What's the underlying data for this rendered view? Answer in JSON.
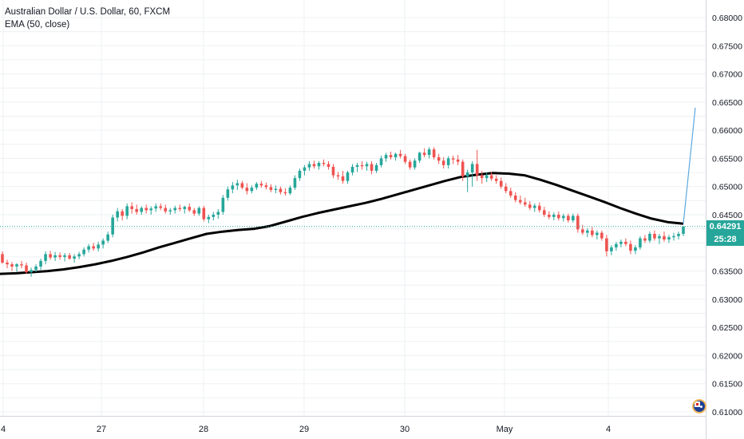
{
  "legend": {
    "symbol": "Australian Dollar / U.S. Dollar, 60, FXCM",
    "indicator": "EMA (50, close)"
  },
  "price_axis": {
    "ticks": [
      "0.68000",
      "0.67500",
      "0.67000",
      "0.66500",
      "0.66000",
      "0.65500",
      "0.65000",
      "0.64500",
      "0.63500",
      "0.63000",
      "0.62500",
      "0.62000",
      "0.61500",
      "0.61000"
    ],
    "current_price": "0.64291",
    "countdown": "25:28"
  },
  "time_axis": {
    "labels": [
      "4",
      "27",
      "28",
      "29",
      "30",
      "May",
      "4"
    ]
  },
  "colors": {
    "up": "#26a69a",
    "down": "#ef5350",
    "ema": "#000000",
    "projection": "#5ba9e0",
    "grid": "#eef0f3",
    "price_line": "#26a69a"
  },
  "icons": {
    "flag": "australia-flag-icon"
  },
  "chart_data": {
    "type": "candlestick",
    "title": "Australian Dollar / U.S. Dollar, 60, FXCM",
    "ylim": [
      0.6095,
      0.6828
    ],
    "grid": true,
    "candles": [
      [
        0.638,
        0.6385,
        0.6363,
        0.6365
      ],
      [
        0.6365,
        0.637,
        0.6355,
        0.6362
      ],
      [
        0.6362,
        0.6366,
        0.635,
        0.6358
      ],
      [
        0.6358,
        0.6364,
        0.6349,
        0.6362
      ],
      [
        0.6362,
        0.6368,
        0.6355,
        0.636
      ],
      [
        0.636,
        0.6365,
        0.6345,
        0.6348
      ],
      [
        0.6348,
        0.6356,
        0.634,
        0.6352
      ],
      [
        0.6352,
        0.6362,
        0.6348,
        0.6358
      ],
      [
        0.6358,
        0.6372,
        0.6352,
        0.6368
      ],
      [
        0.6368,
        0.6385,
        0.6362,
        0.638
      ],
      [
        0.638,
        0.6386,
        0.637,
        0.6374
      ],
      [
        0.6374,
        0.6384,
        0.6368,
        0.6378
      ],
      [
        0.6378,
        0.6383,
        0.637,
        0.6375
      ],
      [
        0.6375,
        0.6382,
        0.6367,
        0.6378
      ],
      [
        0.6378,
        0.6382,
        0.637,
        0.6372
      ],
      [
        0.6372,
        0.638,
        0.6365,
        0.6376
      ],
      [
        0.6376,
        0.6384,
        0.6371,
        0.638
      ],
      [
        0.638,
        0.6392,
        0.6376,
        0.6388
      ],
      [
        0.6388,
        0.6398,
        0.6383,
        0.6394
      ],
      [
        0.6394,
        0.64,
        0.6386,
        0.639
      ],
      [
        0.639,
        0.6402,
        0.6385,
        0.6397
      ],
      [
        0.6397,
        0.6408,
        0.639,
        0.6404
      ],
      [
        0.6404,
        0.642,
        0.64,
        0.6415
      ],
      [
        0.6415,
        0.645,
        0.641,
        0.6445
      ],
      [
        0.6445,
        0.6462,
        0.6438,
        0.6456
      ],
      [
        0.6456,
        0.646,
        0.644,
        0.6448
      ],
      [
        0.6448,
        0.647,
        0.6442,
        0.6465
      ],
      [
        0.6465,
        0.6472,
        0.6452,
        0.646
      ],
      [
        0.646,
        0.6468,
        0.645,
        0.6455
      ],
      [
        0.6455,
        0.6465,
        0.645,
        0.6462
      ],
      [
        0.6462,
        0.6468,
        0.6452,
        0.6458
      ],
      [
        0.6458,
        0.6465,
        0.645,
        0.6461
      ],
      [
        0.6461,
        0.647,
        0.6455,
        0.6465
      ],
      [
        0.6465,
        0.647,
        0.6458,
        0.6462
      ],
      [
        0.6462,
        0.6468,
        0.6452,
        0.6456
      ],
      [
        0.6456,
        0.6462,
        0.645,
        0.6458
      ],
      [
        0.6458,
        0.6466,
        0.6452,
        0.6462
      ],
      [
        0.6462,
        0.6468,
        0.6456,
        0.646
      ],
      [
        0.646,
        0.6466,
        0.6452,
        0.6464
      ],
      [
        0.6464,
        0.647,
        0.6455,
        0.6458
      ],
      [
        0.6458,
        0.6462,
        0.6448,
        0.6452
      ],
      [
        0.6452,
        0.6465,
        0.6448,
        0.6462
      ],
      [
        0.6462,
        0.6466,
        0.6438,
        0.6442
      ],
      [
        0.6442,
        0.645,
        0.6435,
        0.6446
      ],
      [
        0.6446,
        0.6455,
        0.644,
        0.645
      ],
      [
        0.645,
        0.646,
        0.6443,
        0.6455
      ],
      [
        0.6455,
        0.6485,
        0.645,
        0.648
      ],
      [
        0.648,
        0.65,
        0.6475,
        0.6495
      ],
      [
        0.6495,
        0.6508,
        0.6488,
        0.6502
      ],
      [
        0.6502,
        0.6512,
        0.6494,
        0.6506
      ],
      [
        0.6506,
        0.651,
        0.6495,
        0.6498
      ],
      [
        0.6498,
        0.6506,
        0.6486,
        0.6492
      ],
      [
        0.6492,
        0.6502,
        0.6488,
        0.6498
      ],
      [
        0.6498,
        0.6508,
        0.6494,
        0.6505
      ],
      [
        0.6505,
        0.651,
        0.6498,
        0.6502
      ],
      [
        0.6502,
        0.6507,
        0.6495,
        0.6499
      ],
      [
        0.6499,
        0.6504,
        0.649,
        0.6494
      ],
      [
        0.6494,
        0.6502,
        0.6488,
        0.6496
      ],
      [
        0.6496,
        0.65,
        0.6486,
        0.649
      ],
      [
        0.649,
        0.6497,
        0.6484,
        0.6488
      ],
      [
        0.6488,
        0.6502,
        0.6485,
        0.6498
      ],
      [
        0.6498,
        0.652,
        0.6494,
        0.6515
      ],
      [
        0.6515,
        0.6532,
        0.651,
        0.6528
      ],
      [
        0.6528,
        0.6538,
        0.652,
        0.6534
      ],
      [
        0.6534,
        0.6545,
        0.6528,
        0.654
      ],
      [
        0.654,
        0.6546,
        0.6532,
        0.6536
      ],
      [
        0.6536,
        0.6545,
        0.653,
        0.6542
      ],
      [
        0.6542,
        0.6548,
        0.6536,
        0.654
      ],
      [
        0.654,
        0.6545,
        0.653,
        0.6535
      ],
      [
        0.6535,
        0.654,
        0.6515,
        0.652
      ],
      [
        0.652,
        0.6526,
        0.6512,
        0.6518
      ],
      [
        0.6518,
        0.6528,
        0.6505,
        0.651
      ],
      [
        0.651,
        0.6528,
        0.6505,
        0.6525
      ],
      [
        0.6525,
        0.654,
        0.652,
        0.6535
      ],
      [
        0.6535,
        0.6542,
        0.6526,
        0.6538
      ],
      [
        0.6538,
        0.6545,
        0.653,
        0.6536
      ],
      [
        0.6536,
        0.6544,
        0.6528,
        0.654
      ],
      [
        0.654,
        0.6545,
        0.6522,
        0.6528
      ],
      [
        0.6528,
        0.6542,
        0.6524,
        0.6538
      ],
      [
        0.6538,
        0.6555,
        0.6534,
        0.655
      ],
      [
        0.655,
        0.656,
        0.6544,
        0.6556
      ],
      [
        0.6556,
        0.6562,
        0.6548,
        0.6552
      ],
      [
        0.6552,
        0.656,
        0.6546,
        0.6558
      ],
      [
        0.6558,
        0.6565,
        0.655,
        0.6554
      ],
      [
        0.6554,
        0.6558,
        0.654,
        0.6544
      ],
      [
        0.6544,
        0.6548,
        0.653,
        0.6534
      ],
      [
        0.6534,
        0.655,
        0.653,
        0.6546
      ],
      [
        0.6546,
        0.6562,
        0.6542,
        0.656
      ],
      [
        0.656,
        0.6568,
        0.6552,
        0.6556
      ],
      [
        0.6556,
        0.657,
        0.655,
        0.6566
      ],
      [
        0.6566,
        0.657,
        0.6548,
        0.6552
      ],
      [
        0.6552,
        0.6558,
        0.654,
        0.6546
      ],
      [
        0.6546,
        0.6552,
        0.6532,
        0.6538
      ],
      [
        0.6538,
        0.6554,
        0.6532,
        0.655
      ],
      [
        0.655,
        0.6555,
        0.654,
        0.6548
      ],
      [
        0.6548,
        0.6556,
        0.6538,
        0.6544
      ],
      [
        0.6544,
        0.6548,
        0.651,
        0.6518
      ],
      [
        0.6518,
        0.653,
        0.649,
        0.6525
      ],
      [
        0.6525,
        0.6545,
        0.65,
        0.654
      ],
      [
        0.654,
        0.6565,
        0.651,
        0.652
      ],
      [
        0.652,
        0.6528,
        0.6505,
        0.6515
      ],
      [
        0.6515,
        0.6525,
        0.6508,
        0.652
      ],
      [
        0.652,
        0.6526,
        0.651,
        0.6514
      ],
      [
        0.6514,
        0.652,
        0.6505,
        0.651
      ],
      [
        0.651,
        0.6516,
        0.6496,
        0.65
      ],
      [
        0.65,
        0.6506,
        0.6488,
        0.6492
      ],
      [
        0.6492,
        0.6498,
        0.648,
        0.6484
      ],
      [
        0.6484,
        0.649,
        0.6472,
        0.6476
      ],
      [
        0.6476,
        0.6484,
        0.6468,
        0.6472
      ],
      [
        0.6472,
        0.648,
        0.6464,
        0.6468
      ],
      [
        0.6468,
        0.6474,
        0.6458,
        0.6462
      ],
      [
        0.6462,
        0.647,
        0.6455,
        0.6466
      ],
      [
        0.6466,
        0.6472,
        0.6454,
        0.6458
      ],
      [
        0.6458,
        0.6464,
        0.6446,
        0.645
      ],
      [
        0.645,
        0.6456,
        0.6442,
        0.6446
      ],
      [
        0.6446,
        0.6454,
        0.644,
        0.645
      ],
      [
        0.645,
        0.6456,
        0.644,
        0.6444
      ],
      [
        0.6444,
        0.6452,
        0.6438,
        0.6448
      ],
      [
        0.6448,
        0.6452,
        0.6436,
        0.644
      ],
      [
        0.644,
        0.6452,
        0.6436,
        0.6448
      ],
      [
        0.6448,
        0.6452,
        0.6418,
        0.6424
      ],
      [
        0.6424,
        0.6432,
        0.6414,
        0.6418
      ],
      [
        0.6418,
        0.6426,
        0.641,
        0.6422
      ],
      [
        0.6422,
        0.6428,
        0.641,
        0.6414
      ],
      [
        0.6414,
        0.6422,
        0.6406,
        0.6418
      ],
      [
        0.6418,
        0.6422,
        0.6404,
        0.6408
      ],
      [
        0.6408,
        0.6414,
        0.6376,
        0.6385
      ],
      [
        0.6385,
        0.6396,
        0.6378,
        0.6392
      ],
      [
        0.6392,
        0.6402,
        0.6386,
        0.6398
      ],
      [
        0.6398,
        0.6406,
        0.6392,
        0.6402
      ],
      [
        0.6402,
        0.6408,
        0.6394,
        0.6398
      ],
      [
        0.6398,
        0.6404,
        0.638,
        0.6386
      ],
      [
        0.6386,
        0.6396,
        0.638,
        0.6392
      ],
      [
        0.6392,
        0.6412,
        0.6388,
        0.6408
      ],
      [
        0.6408,
        0.6414,
        0.64,
        0.6404
      ],
      [
        0.6404,
        0.642,
        0.64,
        0.6416
      ],
      [
        0.6416,
        0.6422,
        0.6404,
        0.6408
      ],
      [
        0.6408,
        0.6416,
        0.6398,
        0.6412
      ],
      [
        0.6412,
        0.642,
        0.6402,
        0.6406
      ],
      [
        0.6406,
        0.6414,
        0.64,
        0.641
      ],
      [
        0.641,
        0.6418,
        0.6404,
        0.6412
      ],
      [
        0.6412,
        0.642,
        0.6406,
        0.6416
      ],
      [
        0.6416,
        0.643,
        0.6412,
        0.6429
      ]
    ],
    "ema_50": [
      0.6345,
      0.6346,
      0.6348,
      0.635,
      0.6353,
      0.6357,
      0.6362,
      0.6368,
      0.6375,
      0.6383,
      0.6392,
      0.64,
      0.6408,
      0.6416,
      0.642,
      0.6423,
      0.6425,
      0.643,
      0.6438,
      0.6446,
      0.6453,
      0.6459,
      0.6465,
      0.6471,
      0.6478,
      0.6486,
      0.6494,
      0.6502,
      0.651,
      0.6517,
      0.6521,
      0.6524,
      0.6523,
      0.652,
      0.6512,
      0.6503,
      0.6493,
      0.6483,
      0.6473,
      0.6462,
      0.6452,
      0.6443,
      0.6437,
      0.6434
    ],
    "projection": [
      [
        0.6434,
        0.6434
      ],
      [
        0.646,
        0.664
      ]
    ]
  }
}
